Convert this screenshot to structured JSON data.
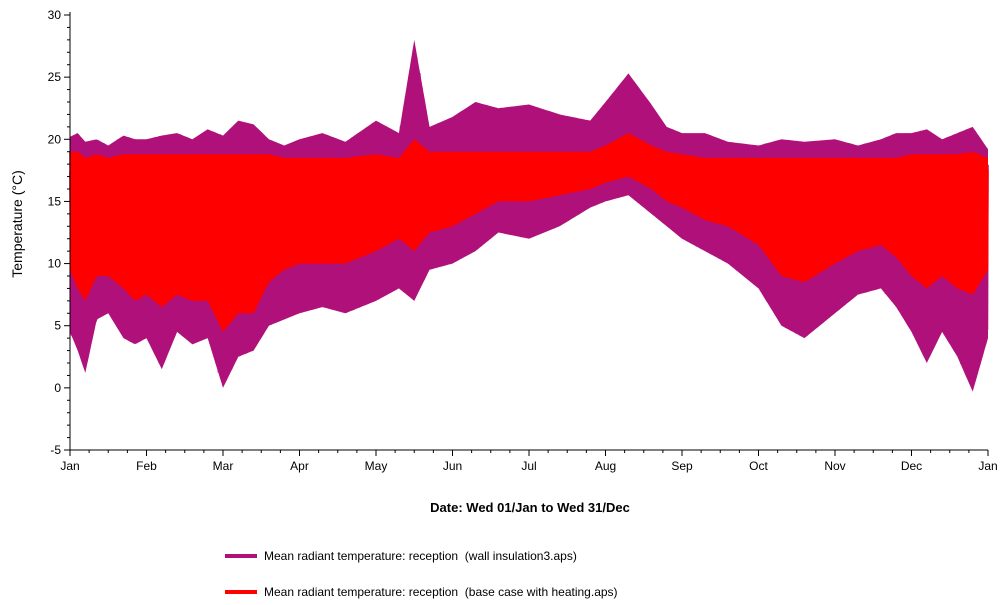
{
  "chart_data": {
    "type": "line",
    "title": "",
    "xlabel": "Date: Wed 01/Jan to Wed 31/Dec",
    "ylabel": "Temperature (°C)",
    "ylim": [
      -5,
      30
    ],
    "yticks": [
      "30",
      "25",
      "20",
      "15",
      "10",
      "5",
      "0",
      "-5"
    ],
    "xlim": [
      "01/Jan",
      "31/Dec"
    ],
    "xticks": [
      "Jan",
      "Feb",
      "Mar",
      "Apr",
      "May",
      "Jun",
      "Jul",
      "Aug",
      "Sep",
      "Oct",
      "Nov",
      "Dec",
      "Jan"
    ],
    "grid": false,
    "legend_position": "bottom",
    "series": [
      {
        "name": "Mean radiant temperature: reception  (wall insulation3.aps)",
        "color": "#b0107a",
        "x_months": [
          0.0,
          0.1,
          0.2,
          0.35,
          0.5,
          0.7,
          0.85,
          1.0,
          1.2,
          1.4,
          1.6,
          1.8,
          2.0,
          2.2,
          2.4,
          2.6,
          2.8,
          3.0,
          3.3,
          3.6,
          4.0,
          4.3,
          4.5,
          4.7,
          5.0,
          5.3,
          5.6,
          6.0,
          6.4,
          6.8,
          7.0,
          7.3,
          7.6,
          7.8,
          8.0,
          8.3,
          8.6,
          9.0,
          9.3,
          9.6,
          10.0,
          10.3,
          10.6,
          10.8,
          11.0,
          11.2,
          11.4,
          11.6,
          11.8,
          12.0
        ],
        "max": [
          20.2,
          20.5,
          19.8,
          20.0,
          19.5,
          20.3,
          20.0,
          20.0,
          20.3,
          20.5,
          20.0,
          20.8,
          20.3,
          21.5,
          21.2,
          20.0,
          19.5,
          20.0,
          20.5,
          19.8,
          21.5,
          20.5,
          28.0,
          21.0,
          21.8,
          23.0,
          22.5,
          22.8,
          22.0,
          21.5,
          23.0,
          25.3,
          22.8,
          21.0,
          20.5,
          20.5,
          19.8,
          19.5,
          20.0,
          19.8,
          20.0,
          19.5,
          20.0,
          20.5,
          20.5,
          20.8,
          20.0,
          20.5,
          21.0,
          19.2
        ],
        "min": [
          4.5,
          3.0,
          1.2,
          5.5,
          6.0,
          4.0,
          3.5,
          4.0,
          1.5,
          4.5,
          3.5,
          4.0,
          0.0,
          2.5,
          3.0,
          5.0,
          5.5,
          6.0,
          6.5,
          6.0,
          7.0,
          8.0,
          7.0,
          9.5,
          10.0,
          11.0,
          12.5,
          12.0,
          13.0,
          14.5,
          15.0,
          15.5,
          14.0,
          13.0,
          12.0,
          11.0,
          10.0,
          8.0,
          5.0,
          4.0,
          6.0,
          7.5,
          8.0,
          6.5,
          4.5,
          2.0,
          4.5,
          2.5,
          -0.3,
          4.0
        ]
      },
      {
        "name": "Mean radiant temperature: reception  (base case with heating.aps)",
        "color": "#ff0000",
        "x_months": [
          0.0,
          0.1,
          0.2,
          0.35,
          0.5,
          0.7,
          0.85,
          1.0,
          1.2,
          1.4,
          1.6,
          1.8,
          2.0,
          2.2,
          2.4,
          2.6,
          2.8,
          3.0,
          3.3,
          3.6,
          4.0,
          4.3,
          4.5,
          4.7,
          5.0,
          5.3,
          5.6,
          6.0,
          6.4,
          6.8,
          7.0,
          7.3,
          7.6,
          7.8,
          8.0,
          8.3,
          8.6,
          9.0,
          9.3,
          9.6,
          10.0,
          10.3,
          10.6,
          10.8,
          11.0,
          11.2,
          11.4,
          11.6,
          11.8,
          12.0
        ],
        "max": [
          19.0,
          19.0,
          18.5,
          18.8,
          18.5,
          18.8,
          18.8,
          18.8,
          18.8,
          18.8,
          18.8,
          18.8,
          18.8,
          18.8,
          18.8,
          18.8,
          18.5,
          18.5,
          18.5,
          18.5,
          18.8,
          18.5,
          20.0,
          19.0,
          19.0,
          19.0,
          19.0,
          19.0,
          19.0,
          19.0,
          19.5,
          20.5,
          19.5,
          19.0,
          18.8,
          18.5,
          18.5,
          18.5,
          18.5,
          18.5,
          18.5,
          18.5,
          18.5,
          18.5,
          18.8,
          18.8,
          18.8,
          18.8,
          19.0,
          18.5
        ],
        "min": [
          9.5,
          8.0,
          7.0,
          9.0,
          9.0,
          8.0,
          7.0,
          7.5,
          6.5,
          7.5,
          7.0,
          7.0,
          4.5,
          6.0,
          6.0,
          8.5,
          9.5,
          10.0,
          10.0,
          10.0,
          11.0,
          12.0,
          11.0,
          12.5,
          13.0,
          14.0,
          15.0,
          15.0,
          15.5,
          16.0,
          16.5,
          17.0,
          16.0,
          15.0,
          14.5,
          13.5,
          13.0,
          11.5,
          9.0,
          8.5,
          10.0,
          11.0,
          11.5,
          10.5,
          9.0,
          8.0,
          9.0,
          8.0,
          7.5,
          9.5
        ]
      }
    ]
  }
}
